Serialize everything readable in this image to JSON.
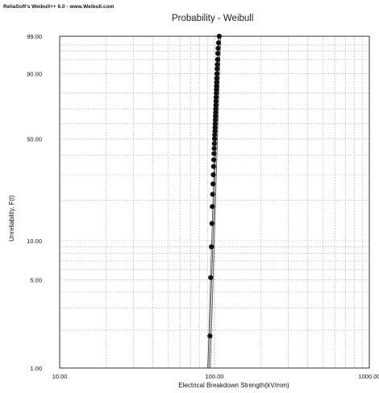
{
  "header": {
    "watermark": "ReliaSoft's Weibull++ 6.0 - www.Weibull.com"
  },
  "chart_data": {
    "type": "scatter",
    "title": "Probability - Weibull",
    "xlabel": "Electrical Breakdown Strength(kV/mm)",
    "ylabel": "Unreliability, F(t)",
    "x_scale": "log",
    "y_scale": "weibull",
    "xlim": [
      10,
      1000
    ],
    "ylim": [
      1,
      99
    ],
    "x_ticks": [
      "10.00",
      "100.00",
      "1000.00"
    ],
    "y_ticks": [
      "1.00",
      "5.00",
      "10.00",
      "50.00",
      "90.00",
      "99.00"
    ],
    "grid": true,
    "colors": {
      "points": "#111111",
      "lines": "#444444",
      "grid": "#9a9a9a",
      "frame": "#333333"
    },
    "series": [
      {
        "type": "scatter",
        "x": [
          93.5,
          94.5,
          95.5,
          96.2,
          96.8,
          97.3,
          97.8,
          98.2,
          98.6,
          98.9,
          99.2,
          99.5,
          99.8,
          100.1,
          100.3,
          100.6,
          100.8,
          101.0,
          101.2,
          101.4,
          101.6,
          101.8,
          102.0,
          102.2,
          102.4,
          102.6,
          102.8,
          103.0,
          103.2,
          103.4,
          103.7,
          104.0,
          104.3,
          104.6,
          105.0,
          105.5,
          106.2,
          107.3
        ],
        "y": [
          1.8,
          5.2,
          9.0,
          13.5,
          18.0,
          22.0,
          26.0,
          30.0,
          34.0,
          37.5,
          41.0,
          44.0,
          47.0,
          50.0,
          52.5,
          55.0,
          57.5,
          60.0,
          62.5,
          65.0,
          67.5,
          70.0,
          72.5,
          75.0,
          77.5,
          80.0,
          82.0,
          84.0,
          86.0,
          88.0,
          90.0,
          92.0,
          93.5,
          95.0,
          96.5,
          97.5,
          98.3,
          99.0
        ]
      },
      {
        "type": "line",
        "x": [
          92.0,
          107.5
        ],
        "y": [
          1.0,
          99.0
        ]
      },
      {
        "type": "line",
        "x": [
          94.0,
          109.5
        ],
        "y": [
          1.0,
          99.0
        ]
      },
      {
        "type": "line",
        "x": [
          90.5,
          105.5
        ],
        "y": [
          1.0,
          99.0
        ]
      }
    ]
  }
}
